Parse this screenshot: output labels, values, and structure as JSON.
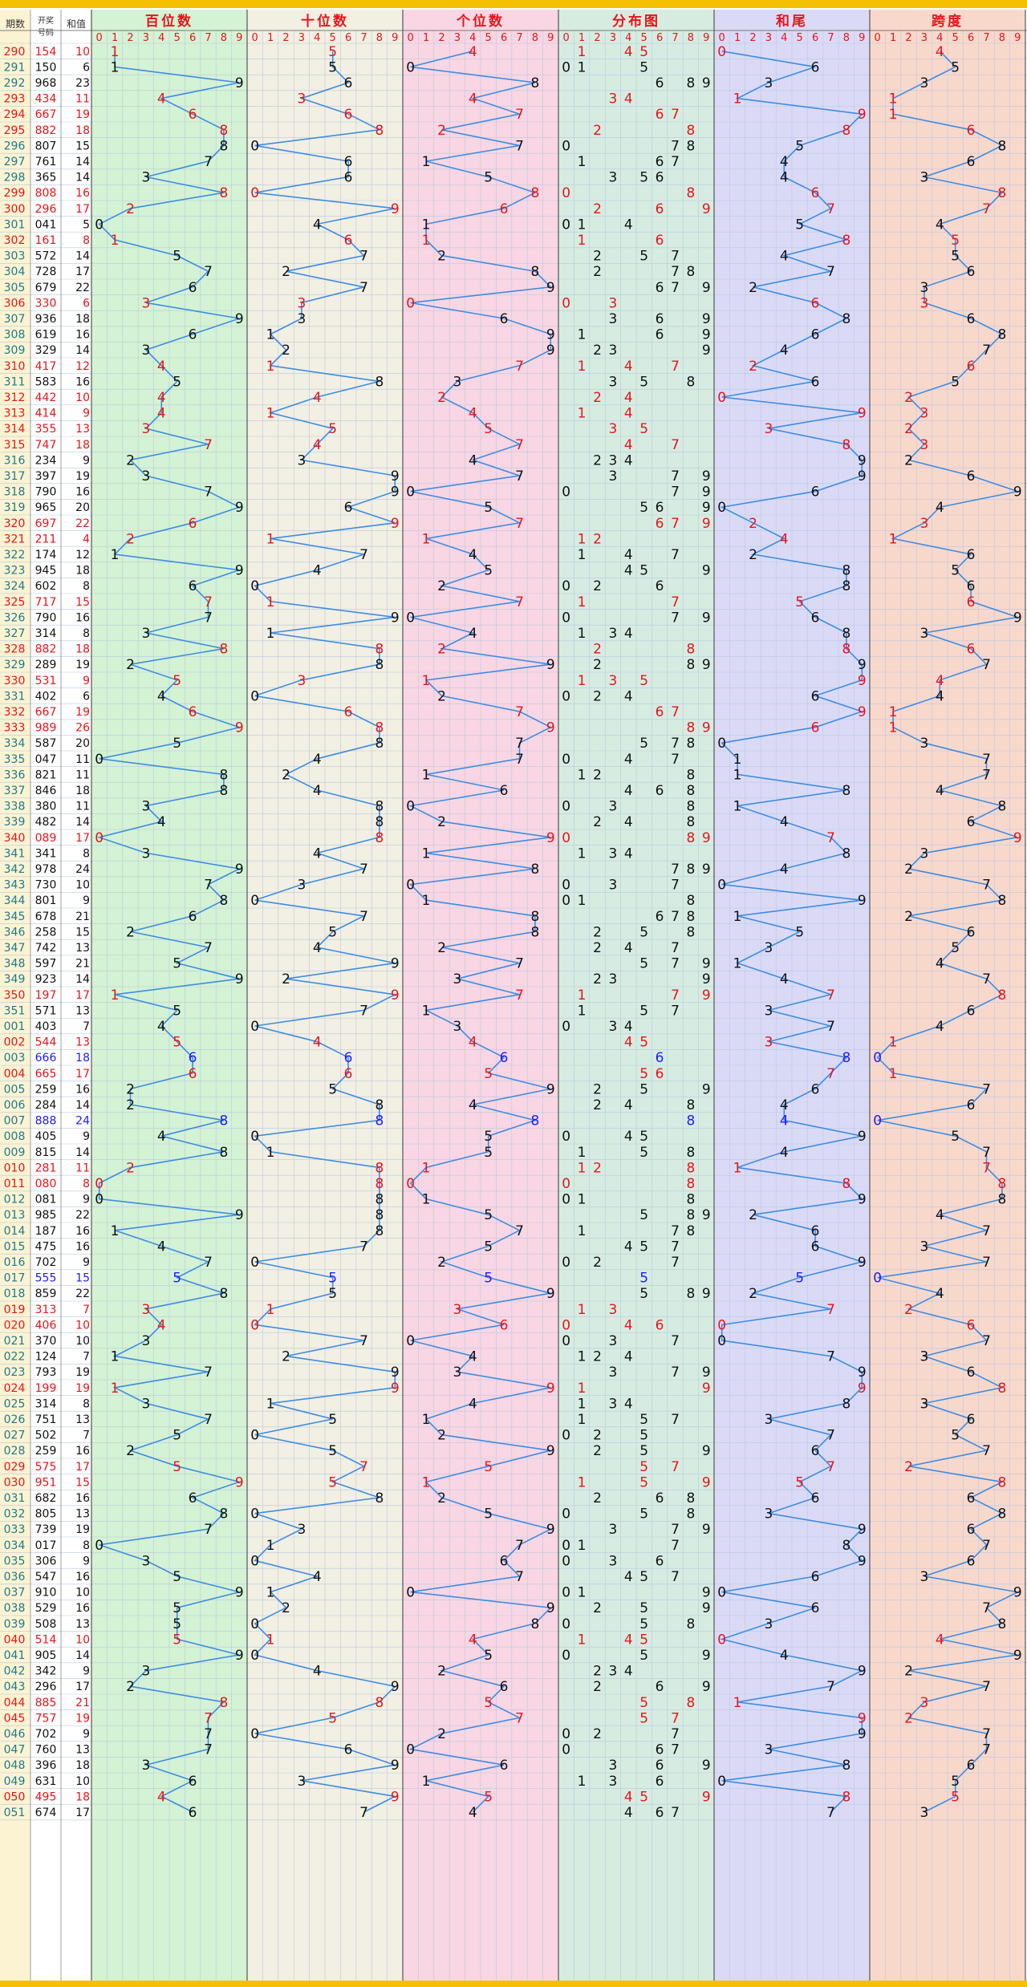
{
  "header": {
    "col_issue": "期数",
    "col_draw": "开奖号码",
    "col_sum": "和值",
    "panels": [
      "百位数",
      "十位数",
      "个位数",
      "分布图",
      "和尾",
      "跨度"
    ],
    "digits": [
      "0",
      "1",
      "2",
      "3",
      "4",
      "5",
      "6",
      "7",
      "8",
      "9"
    ]
  },
  "colors": {
    "panel_bg": [
      "#d4f2d4",
      "#f2efe3",
      "#f9d6e3",
      "#d6ece1",
      "#dadaf7",
      "#f9d8cc"
    ],
    "grid": "#b9c9e0",
    "line": "#3d8de2",
    "red": "#e8141a",
    "blue": "#1c1cff",
    "teal": "#1e7a8c",
    "top_bar": "#f5c000"
  },
  "chart_data": {
    "type": "table",
    "rows": [
      {
        "issue": "290",
        "draw": "154"
      },
      {
        "issue": "291",
        "draw": "150"
      },
      {
        "issue": "292",
        "draw": "968"
      },
      {
        "issue": "293",
        "draw": "434"
      },
      {
        "issue": "294",
        "draw": "667"
      },
      {
        "issue": "295",
        "draw": "882"
      },
      {
        "issue": "296",
        "draw": "807"
      },
      {
        "issue": "297",
        "draw": "761"
      },
      {
        "issue": "298",
        "draw": "365"
      },
      {
        "issue": "299",
        "draw": "808"
      },
      {
        "issue": "300",
        "draw": "296"
      },
      {
        "issue": "301",
        "draw": "041"
      },
      {
        "issue": "302",
        "draw": "161"
      },
      {
        "issue": "303",
        "draw": "572"
      },
      {
        "issue": "304",
        "draw": "728"
      },
      {
        "issue": "305",
        "draw": "679"
      },
      {
        "issue": "306",
        "draw": "330"
      },
      {
        "issue": "307",
        "draw": "936"
      },
      {
        "issue": "308",
        "draw": "619"
      },
      {
        "issue": "309",
        "draw": "329"
      },
      {
        "issue": "310",
        "draw": "417"
      },
      {
        "issue": "311",
        "draw": "583"
      },
      {
        "issue": "312",
        "draw": "442"
      },
      {
        "issue": "313",
        "draw": "414"
      },
      {
        "issue": "314",
        "draw": "355"
      },
      {
        "issue": "315",
        "draw": "747"
      },
      {
        "issue": "316",
        "draw": "234"
      },
      {
        "issue": "317",
        "draw": "397"
      },
      {
        "issue": "318",
        "draw": "790"
      },
      {
        "issue": "319",
        "draw": "965"
      },
      {
        "issue": "320",
        "draw": "697"
      },
      {
        "issue": "321",
        "draw": "211"
      },
      {
        "issue": "322",
        "draw": "174"
      },
      {
        "issue": "323",
        "draw": "945"
      },
      {
        "issue": "324",
        "draw": "602"
      },
      {
        "issue": "325",
        "draw": "717"
      },
      {
        "issue": "326",
        "draw": "790"
      },
      {
        "issue": "327",
        "draw": "314"
      },
      {
        "issue": "328",
        "draw": "882"
      },
      {
        "issue": "329",
        "draw": "289"
      },
      {
        "issue": "330",
        "draw": "531"
      },
      {
        "issue": "331",
        "draw": "402"
      },
      {
        "issue": "332",
        "draw": "667"
      },
      {
        "issue": "333",
        "draw": "989"
      },
      {
        "issue": "334",
        "draw": "587"
      },
      {
        "issue": "335",
        "draw": "047"
      },
      {
        "issue": "336",
        "draw": "821"
      },
      {
        "issue": "337",
        "draw": "846"
      },
      {
        "issue": "338",
        "draw": "380"
      },
      {
        "issue": "339",
        "draw": "482"
      },
      {
        "issue": "340",
        "draw": "089"
      },
      {
        "issue": "341",
        "draw": "341"
      },
      {
        "issue": "342",
        "draw": "978"
      },
      {
        "issue": "343",
        "draw": "730"
      },
      {
        "issue": "344",
        "draw": "801"
      },
      {
        "issue": "345",
        "draw": "678"
      },
      {
        "issue": "346",
        "draw": "258"
      },
      {
        "issue": "347",
        "draw": "742"
      },
      {
        "issue": "348",
        "draw": "597"
      },
      {
        "issue": "349",
        "draw": "923"
      },
      {
        "issue": "350",
        "draw": "197"
      },
      {
        "issue": "351",
        "draw": "571"
      },
      {
        "issue": "001",
        "draw": "403"
      },
      {
        "issue": "002",
        "draw": "544"
      },
      {
        "issue": "003",
        "draw": "666"
      },
      {
        "issue": "004",
        "draw": "665"
      },
      {
        "issue": "005",
        "draw": "259"
      },
      {
        "issue": "006",
        "draw": "284"
      },
      {
        "issue": "007",
        "draw": "888"
      },
      {
        "issue": "008",
        "draw": "405"
      },
      {
        "issue": "009",
        "draw": "815"
      },
      {
        "issue": "010",
        "draw": "281"
      },
      {
        "issue": "011",
        "draw": "080"
      },
      {
        "issue": "012",
        "draw": "081"
      },
      {
        "issue": "013",
        "draw": "985"
      },
      {
        "issue": "014",
        "draw": "187"
      },
      {
        "issue": "015",
        "draw": "475"
      },
      {
        "issue": "016",
        "draw": "702"
      },
      {
        "issue": "017",
        "draw": "555"
      },
      {
        "issue": "018",
        "draw": "859"
      },
      {
        "issue": "019",
        "draw": "313"
      },
      {
        "issue": "020",
        "draw": "406"
      },
      {
        "issue": "021",
        "draw": "370"
      },
      {
        "issue": "022",
        "draw": "124"
      },
      {
        "issue": "023",
        "draw": "793"
      },
      {
        "issue": "024",
        "draw": "199"
      },
      {
        "issue": "025",
        "draw": "314"
      },
      {
        "issue": "026",
        "draw": "751"
      },
      {
        "issue": "027",
        "draw": "502"
      },
      {
        "issue": "028",
        "draw": "259"
      },
      {
        "issue": "029",
        "draw": "575"
      },
      {
        "issue": "030",
        "draw": "951"
      },
      {
        "issue": "031",
        "draw": "682"
      },
      {
        "issue": "032",
        "draw": "805"
      },
      {
        "issue": "033",
        "draw": "739"
      },
      {
        "issue": "034",
        "draw": "017"
      },
      {
        "issue": "035",
        "draw": "306"
      },
      {
        "issue": "036",
        "draw": "547"
      },
      {
        "issue": "037",
        "draw": "910"
      },
      {
        "issue": "038",
        "draw": "529"
      },
      {
        "issue": "039",
        "draw": "508"
      },
      {
        "issue": "040",
        "draw": "514"
      },
      {
        "issue": "041",
        "draw": "905"
      },
      {
        "issue": "042",
        "draw": "342"
      },
      {
        "issue": "043",
        "draw": "296"
      },
      {
        "issue": "044",
        "draw": "885"
      },
      {
        "issue": "045",
        "draw": "757"
      },
      {
        "issue": "046",
        "draw": "702"
      },
      {
        "issue": "047",
        "draw": "760"
      },
      {
        "issue": "048",
        "draw": "396"
      },
      {
        "issue": "049",
        "draw": "631"
      },
      {
        "issue": "050",
        "draw": "495"
      },
      {
        "issue": "051",
        "draw": "674"
      }
    ],
    "red_issues": [
      "290",
      "293",
      "294",
      "295",
      "299",
      "300",
      "302",
      "306",
      "310",
      "312",
      "313",
      "314",
      "315",
      "320",
      "321",
      "325",
      "328",
      "330",
      "332",
      "333",
      "340",
      "350",
      "002",
      "004",
      "010",
      "011",
      "019",
      "020",
      "024",
      "029",
      "030",
      "040",
      "044",
      "045",
      "050"
    ],
    "blue_issues": [
      "003",
      "007",
      "017"
    ]
  }
}
